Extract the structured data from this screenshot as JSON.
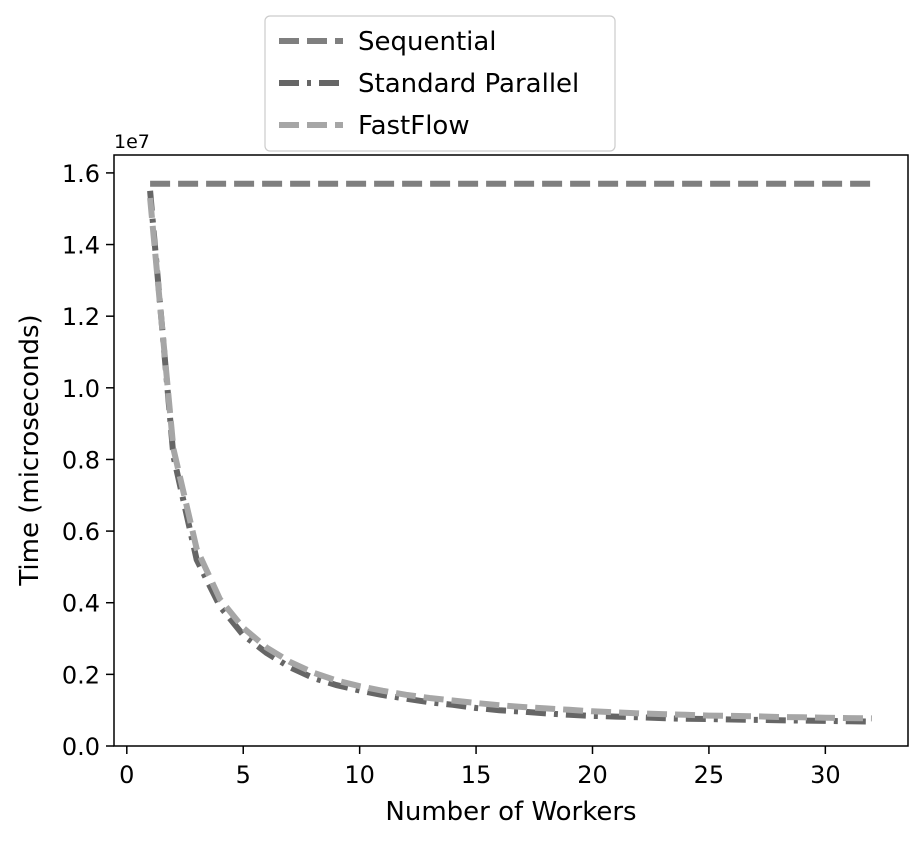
{
  "chart_data": {
    "type": "line",
    "xlabel": "Number of Workers",
    "ylabel": "Time (microseconds)",
    "y_offset_text": "1e7",
    "xlim": [
      -0.55,
      33.55
    ],
    "ylim": [
      0,
      16500000
    ],
    "x_ticks": [
      0,
      5,
      10,
      15,
      20,
      25,
      30
    ],
    "x_tick_labels": [
      "0",
      "5",
      "10",
      "15",
      "20",
      "25",
      "30"
    ],
    "y_ticks": [
      0,
      2000000,
      4000000,
      6000000,
      8000000,
      10000000,
      12000000,
      14000000,
      16000000
    ],
    "y_tick_labels": [
      "0.0",
      "0.2",
      "0.4",
      "0.6",
      "0.8",
      "1.0",
      "1.2",
      "1.4",
      "1.6"
    ],
    "grid": false,
    "legend_position": "above-center",
    "x": [
      1,
      2,
      3,
      4,
      5,
      6,
      7,
      8,
      9,
      10,
      11,
      12,
      13,
      14,
      15,
      16,
      17,
      18,
      19,
      20,
      21,
      22,
      23,
      24,
      25,
      26,
      27,
      28,
      29,
      30,
      31,
      32
    ],
    "series": [
      {
        "name": "Sequential",
        "color": "#7f7f7f",
        "dash": "dashed",
        "values": [
          15700000,
          15700000,
          15700000,
          15700000,
          15700000,
          15700000,
          15700000,
          15700000,
          15700000,
          15700000,
          15700000,
          15700000,
          15700000,
          15700000,
          15700000,
          15700000,
          15700000,
          15700000,
          15700000,
          15700000,
          15700000,
          15700000,
          15700000,
          15700000,
          15700000,
          15700000,
          15700000,
          15700000,
          15700000,
          15700000,
          15700000,
          15700000
        ]
      },
      {
        "name": "Standard Parallel",
        "color": "#666666",
        "dash": "dashdot",
        "values": [
          15500000,
          8100000,
          5200000,
          3900000,
          3100000,
          2600000,
          2200000,
          1900000,
          1700000,
          1550000,
          1420000,
          1320000,
          1220000,
          1150000,
          1060000,
          1000000,
          960000,
          910000,
          870000,
          840000,
          820000,
          800000,
          780000,
          760000,
          750000,
          740000,
          730000,
          720000,
          710000,
          700000,
          690000,
          680000
        ]
      },
      {
        "name": "FastFlow",
        "color": "#a6a6a6",
        "dash": "dashed",
        "values": [
          15300000,
          8300000,
          5500000,
          4100000,
          3300000,
          2750000,
          2350000,
          2050000,
          1830000,
          1670000,
          1540000,
          1430000,
          1340000,
          1270000,
          1200000,
          1140000,
          1090000,
          1050000,
          1010000,
          970000,
          940000,
          910000,
          890000,
          870000,
          850000,
          840000,
          830000,
          810000,
          800000,
          790000,
          780000,
          770000
        ]
      }
    ]
  }
}
